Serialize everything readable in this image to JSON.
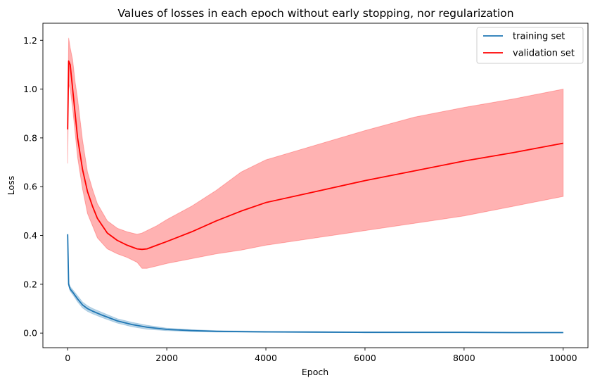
{
  "chart_data": {
    "type": "line",
    "title": "Values of losses in each epoch without early stopping, nor regularization",
    "xlabel": "Epoch",
    "ylabel": "Loss",
    "xlim": [
      -500,
      10500
    ],
    "ylim": [
      -0.06,
      1.27
    ],
    "xticks": [
      0,
      2000,
      4000,
      6000,
      8000,
      10000
    ],
    "yticks": [
      0.0,
      0.2,
      0.4,
      0.6,
      0.8,
      1.0,
      1.2
    ],
    "xtick_labels": [
      "0",
      "2000",
      "4000",
      "6000",
      "8000",
      "10000"
    ],
    "ytick_labels": [
      "0.0",
      "0.2",
      "0.4",
      "0.6",
      "0.8",
      "1.0",
      "1.2"
    ],
    "grid": false,
    "legend_position": "top-right",
    "series": [
      {
        "name": "training set",
        "color": "#1f77b4",
        "band_color": "#1f77b4",
        "x": [
          0,
          20,
          50,
          100,
          200,
          300,
          400,
          500,
          700,
          1000,
          1300,
          1600,
          2000,
          2500,
          3000,
          4000,
          5000,
          6000,
          7000,
          8000,
          9000,
          10000
        ],
        "values": [
          0.405,
          0.2,
          0.18,
          0.168,
          0.14,
          0.115,
          0.1,
          0.09,
          0.073,
          0.05,
          0.035,
          0.024,
          0.015,
          0.01,
          0.007,
          0.005,
          0.004,
          0.003,
          0.003,
          0.003,
          0.002,
          0.002
        ],
        "lower": [
          0.405,
          0.192,
          0.172,
          0.158,
          0.128,
          0.103,
          0.089,
          0.079,
          0.063,
          0.041,
          0.026,
          0.016,
          0.01,
          0.006,
          0.004,
          0.003,
          0.002,
          0.002,
          0.002,
          0.002,
          0.001,
          0.001
        ],
        "upper": [
          0.405,
          0.208,
          0.19,
          0.178,
          0.153,
          0.127,
          0.112,
          0.101,
          0.084,
          0.059,
          0.044,
          0.032,
          0.02,
          0.014,
          0.01,
          0.007,
          0.006,
          0.005,
          0.004,
          0.004,
          0.003,
          0.003
        ]
      },
      {
        "name": "validation set",
        "color": "#ff0000",
        "band_color": "#ff0000",
        "x": [
          0,
          20,
          50,
          100,
          150,
          200,
          300,
          400,
          500,
          600,
          800,
          1000,
          1200,
          1400,
          1500,
          1600,
          1800,
          2000,
          2500,
          3000,
          3500,
          4000,
          5000,
          6000,
          7000,
          8000,
          9000,
          10000
        ],
        "values": [
          0.835,
          1.115,
          1.1,
          1.0,
          0.9,
          0.8,
          0.67,
          0.58,
          0.52,
          0.47,
          0.41,
          0.38,
          0.36,
          0.345,
          0.343,
          0.345,
          0.36,
          0.375,
          0.415,
          0.46,
          0.5,
          0.535,
          0.58,
          0.625,
          0.665,
          0.705,
          0.74,
          0.778
        ],
        "lower": [
          0.695,
          1.02,
          1.0,
          0.92,
          0.82,
          0.72,
          0.59,
          0.49,
          0.44,
          0.39,
          0.345,
          0.325,
          0.31,
          0.29,
          0.265,
          0.265,
          0.275,
          0.285,
          0.305,
          0.325,
          0.34,
          0.36,
          0.39,
          0.42,
          0.45,
          0.48,
          0.52,
          0.56
        ],
        "upper": [
          0.835,
          1.21,
          1.17,
          1.12,
          1.03,
          0.96,
          0.79,
          0.66,
          0.59,
          0.53,
          0.46,
          0.43,
          0.415,
          0.405,
          0.41,
          0.42,
          0.44,
          0.465,
          0.52,
          0.585,
          0.66,
          0.71,
          0.77,
          0.83,
          0.885,
          0.925,
          0.96,
          1.0
        ]
      }
    ]
  }
}
